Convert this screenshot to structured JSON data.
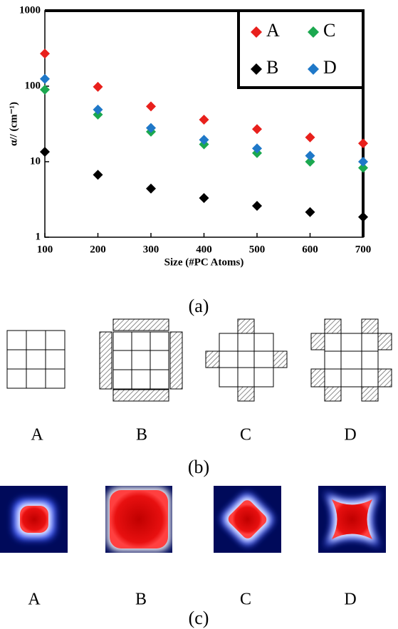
{
  "chart_data": {
    "type": "scatter",
    "log_y": true,
    "x": [
      100,
      200,
      300,
      400,
      500,
      600,
      700
    ],
    "series": [
      {
        "name": "A",
        "color": "#e8201c",
        "values": [
          270,
          98,
          54,
          36,
          27,
          21,
          17.5
        ]
      },
      {
        "name": "B",
        "color": "#000000",
        "values": [
          13.5,
          6.7,
          4.4,
          3.3,
          2.6,
          2.15,
          1.85
        ]
      },
      {
        "name": "C",
        "color": "#1ba84f",
        "values": [
          90,
          42,
          25,
          17,
          13,
          10,
          8.3
        ]
      },
      {
        "name": "D",
        "color": "#1f78c8",
        "values": [
          125,
          49,
          28,
          19.5,
          15,
          12,
          10
        ]
      }
    ],
    "xlim": [
      100,
      700
    ],
    "xticks": [
      100,
      200,
      300,
      400,
      500,
      600,
      700
    ],
    "ylim": [
      1,
      1000
    ],
    "yticks": [
      1,
      10,
      100,
      1000
    ],
    "xlabel": "Size (#PC Atoms)",
    "ylabel": "α// (cm⁻¹)",
    "legend": "top-right",
    "caption": "(a)"
  },
  "panel_b": {
    "caption": "(b)",
    "labels": [
      "A",
      "B",
      "C",
      "D"
    ]
  },
  "panel_c": {
    "caption": "(c)",
    "labels": [
      "A",
      "B",
      "C",
      "D"
    ]
  }
}
